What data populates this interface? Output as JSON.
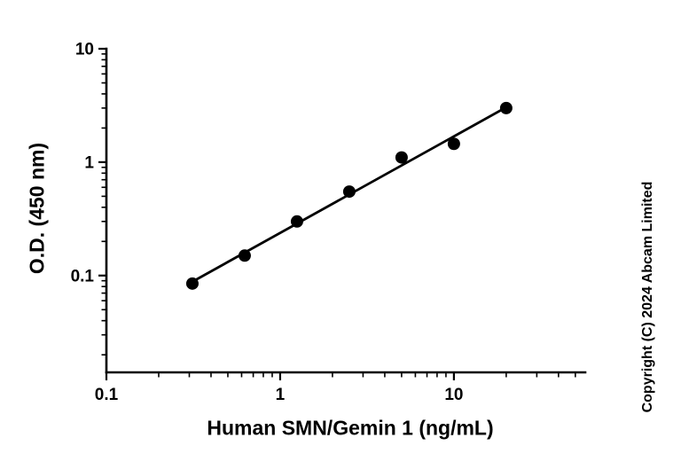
{
  "chart_data": {
    "type": "scatter",
    "title": "",
    "xlabel": "Human SMN/Gemin 1 (ng/mL)",
    "ylabel": "O.D. (450 nm)",
    "xscale": "log",
    "yscale": "log",
    "xlim": [
      0.1,
      57
    ],
    "ylim": [
      0.014,
      10
    ],
    "x_ticks": [
      0.1,
      1,
      10
    ],
    "x_tick_labels": [
      "0.1",
      "1",
      "10"
    ],
    "y_ticks": [
      0.1,
      1,
      10
    ],
    "y_tick_labels": [
      "0.1",
      "1",
      "10"
    ],
    "x": [
      0.3125,
      0.625,
      1.25,
      2.5,
      5,
      10,
      20
    ],
    "y": [
      0.085,
      0.15,
      0.3,
      0.55,
      1.1,
      1.45,
      3.0
    ],
    "grid": false,
    "legend": "none",
    "fit": "power-law straight line through points (log-log)",
    "marker_color": "#000000",
    "line_color": "#000000"
  },
  "watermark": "Copyright (C) 2024 Abcam Limited"
}
